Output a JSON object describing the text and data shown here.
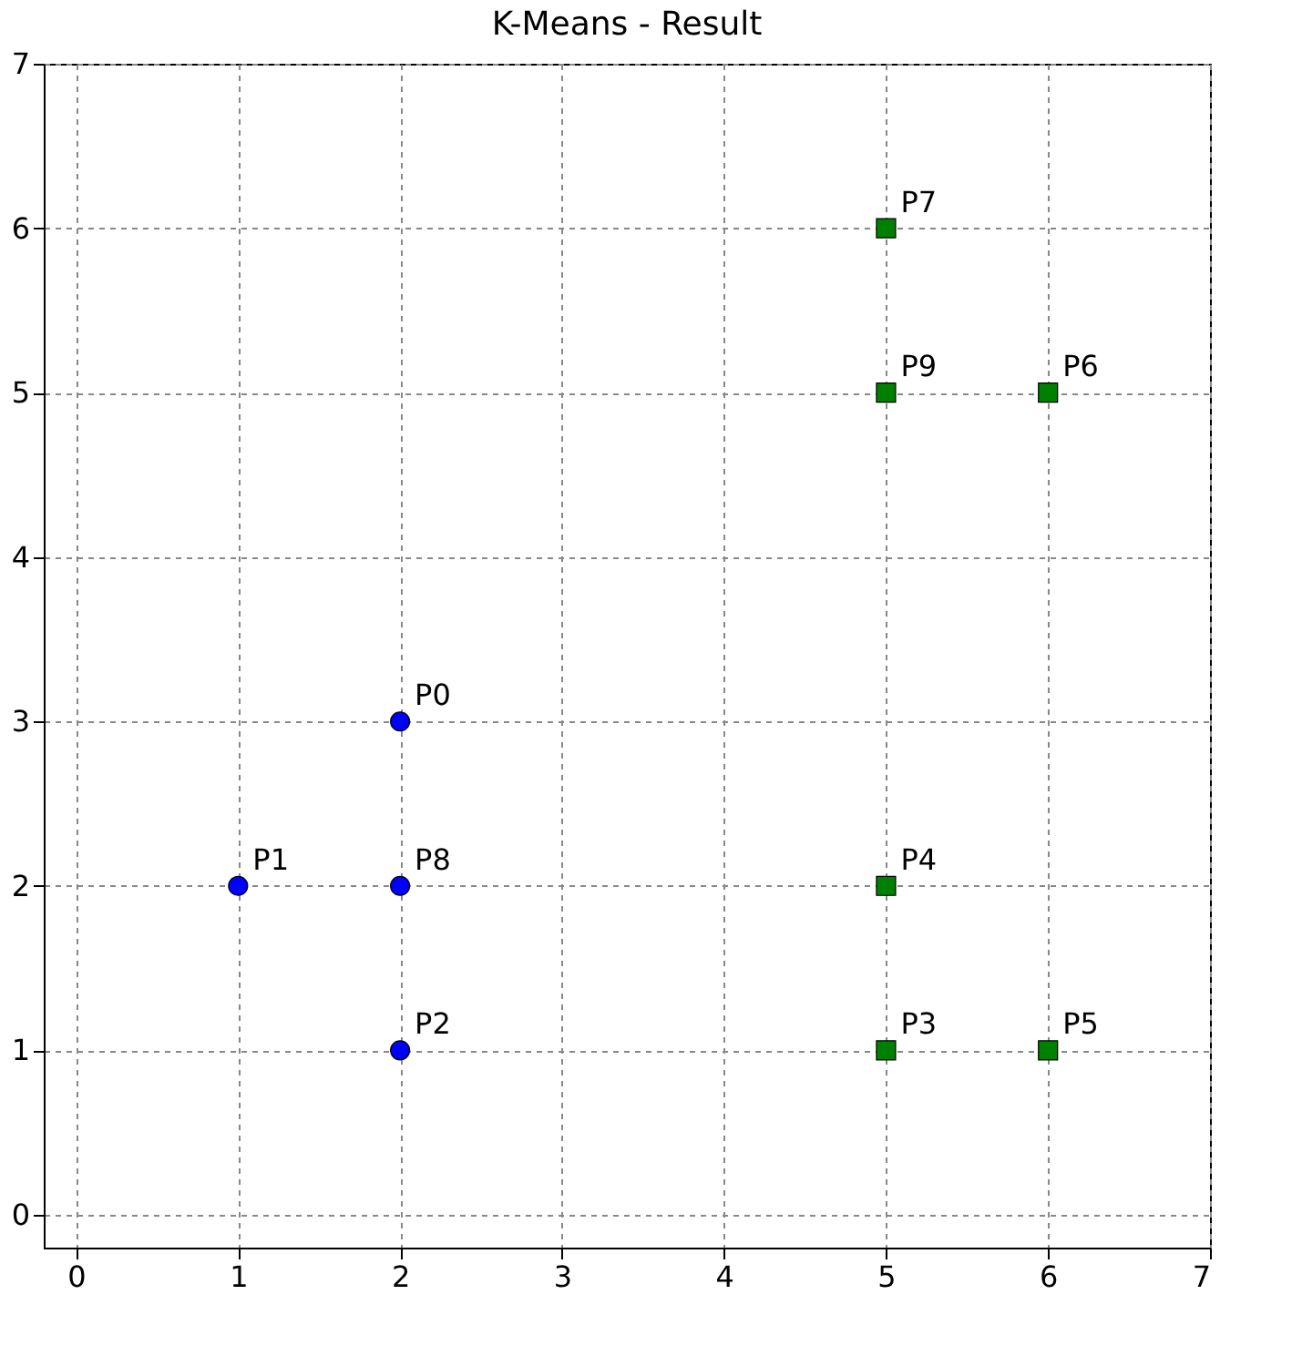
{
  "chart_data": {
    "type": "scatter",
    "title": "K-Means - Result",
    "series": [
      {
        "color": "#0000ff",
        "marker": "circle",
        "x": [
          2,
          1,
          2,
          2
        ],
        "values": [
          3,
          2,
          1,
          2
        ]
      },
      {
        "color": "#008000",
        "marker": "square",
        "x": [
          5,
          5,
          6,
          6,
          5,
          5
        ],
        "values": [
          1,
          2,
          1,
          5,
          6,
          5
        ]
      }
    ],
    "annotations": [
      {
        "text": "P0",
        "x": 2,
        "y": 3
      },
      {
        "text": "P1",
        "x": 1,
        "y": 2
      },
      {
        "text": "P2",
        "x": 2,
        "y": 1
      },
      {
        "text": "P3",
        "x": 5,
        "y": 1
      },
      {
        "text": "P4",
        "x": 5,
        "y": 2
      },
      {
        "text": "P5",
        "x": 6,
        "y": 1
      },
      {
        "text": "P6",
        "x": 6,
        "y": 5
      },
      {
        "text": "P7",
        "x": 5,
        "y": 6
      },
      {
        "text": "P8",
        "x": 2,
        "y": 2
      },
      {
        "text": "P9",
        "x": 5,
        "y": 5
      }
    ],
    "xlim": [
      -0.2,
      7
    ],
    "ylim": [
      -0.2,
      7
    ],
    "xticks": [
      0,
      1,
      2,
      3,
      4,
      5,
      6,
      7
    ],
    "yticks": [
      0,
      1,
      2,
      3,
      4,
      5,
      6,
      7
    ],
    "grid": true
  }
}
